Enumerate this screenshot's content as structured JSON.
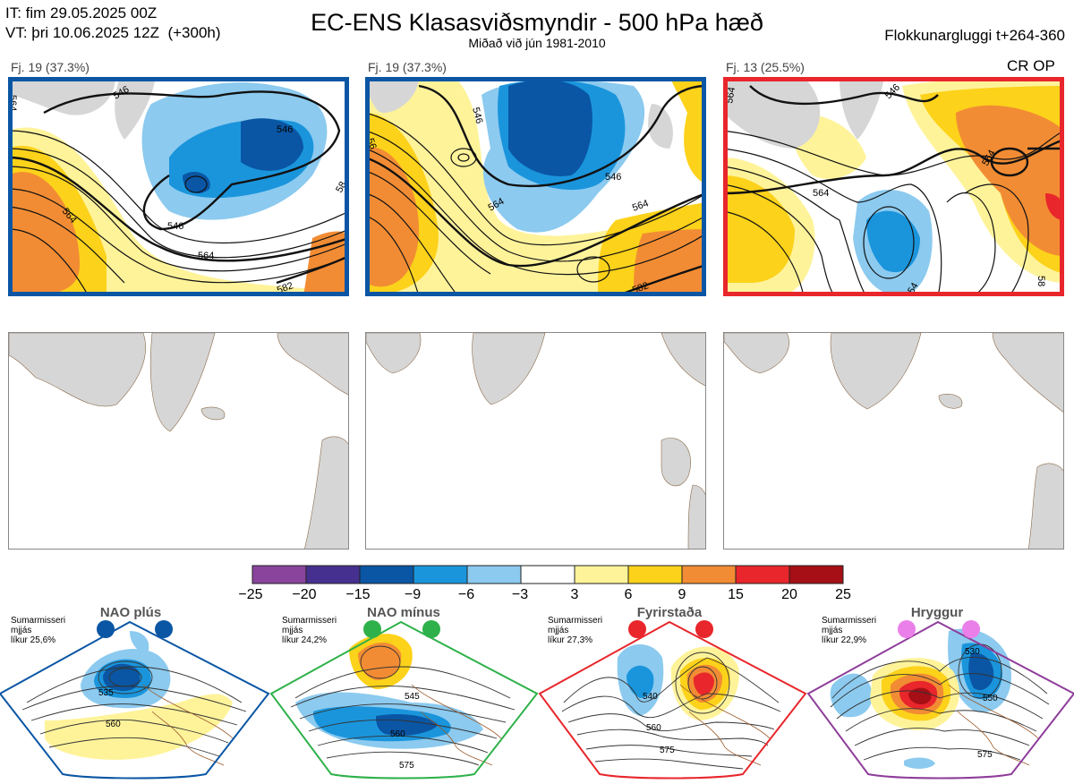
{
  "header": {
    "it_line": "IT: fim 29.05.2025 00Z",
    "vt_line": "VT: þri 10.06.2025 12Z  (+300h)",
    "title": "EC-ENS Klasasviðsmyndir - 500 hPa hæð",
    "subtitle": "Miðað við jún 1981-2010",
    "window": "Flokkunargluggi t+264-360"
  },
  "panels": [
    {
      "label": "Fj. 19 (37.3%)",
      "frame_color": "#0a56a4",
      "extra": ""
    },
    {
      "label": "Fj. 19 (37.3%)",
      "frame_color": "#0a56a4",
      "extra": ""
    },
    {
      "label": "Fj. 13 (25.5%)",
      "frame_color": "#e8262b",
      "extra": "CR OP"
    }
  ],
  "contour_labels": {
    "p1": [
      "546",
      "546",
      "564",
      "546",
      "564",
      "582",
      "564",
      "58"
    ],
    "p2": [
      "546",
      "546",
      "564",
      "564",
      "582",
      "56"
    ],
    "p3": [
      "546",
      "564",
      "564",
      "54",
      "564",
      "58"
    ]
  },
  "colorbar": {
    "ticks": [
      "−25",
      "−20",
      "−15",
      "−9",
      "−6",
      "−3",
      "3",
      "6",
      "9",
      "15",
      "20",
      "25"
    ],
    "colors": [
      "#8a449c",
      "#46308f",
      "#0a56a4",
      "#1a95dc",
      "#8ccaef",
      "#ffffff",
      "#fff39a",
      "#fcd21a",
      "#f28c34",
      "#e8262b",
      "#a50f15"
    ]
  },
  "regimes": [
    {
      "name": "NAO plús",
      "season": "Sumarmisseri",
      "sub": "mjjás",
      "prob": "líkur 25,6%",
      "color": "#0a56a4",
      "border": "#0a56a4",
      "labels": [
        "535",
        "560"
      ]
    },
    {
      "name": "NAO mínus",
      "season": "Sumarmisseri",
      "sub": "mjjás",
      "prob": "líkur 24,2%",
      "color": "#2eb14a",
      "border": "#2eb14a",
      "labels": [
        "545",
        "560",
        "575"
      ]
    },
    {
      "name": "Fyrirstaða",
      "season": "Sumarmisseri",
      "sub": "mjjás",
      "prob": "líkur 27,3%",
      "color": "#e8262b",
      "border": "#e8262b",
      "labels": [
        "540",
        "560",
        "575"
      ]
    },
    {
      "name": "Hryggur",
      "season": "Sumarmisseri",
      "sub": "mjjás",
      "prob": "líkur 22,9%",
      "color": "#ea7fea",
      "border": "#8e3d9a",
      "labels": [
        "530",
        "550",
        "575"
      ]
    }
  ],
  "chart_data": {
    "type": "heatmap",
    "title": "EC-ENS Klasasviðsmyndir - 500 hPa hæð",
    "subtitle": "Miðað við jún 1981-2010",
    "colorbar_bins": [
      -25,
      -20,
      -15,
      -9,
      -6,
      -3,
      3,
      6,
      9,
      15,
      20,
      25
    ],
    "clusters": [
      {
        "label": "Fj. 19 (37.3%)",
        "members": 19,
        "percent": 37.3,
        "contours": [
          546,
          564,
          582
        ]
      },
      {
        "label": "Fj. 19 (37.3%)",
        "members": 19,
        "percent": 37.3,
        "contours": [
          546,
          564,
          582
        ]
      },
      {
        "label": "Fj. 13 (25.5%)",
        "members": 13,
        "percent": 25.5,
        "contours": [
          546,
          564,
          582
        ],
        "note": "CR OP"
      }
    ],
    "regimes": [
      {
        "name": "NAO plús",
        "probability": 25.6
      },
      {
        "name": "NAO mínus",
        "probability": 24.2
      },
      {
        "name": "Fyrirstaða",
        "probability": 27.3
      },
      {
        "name": "Hryggur",
        "probability": 22.9
      }
    ]
  }
}
